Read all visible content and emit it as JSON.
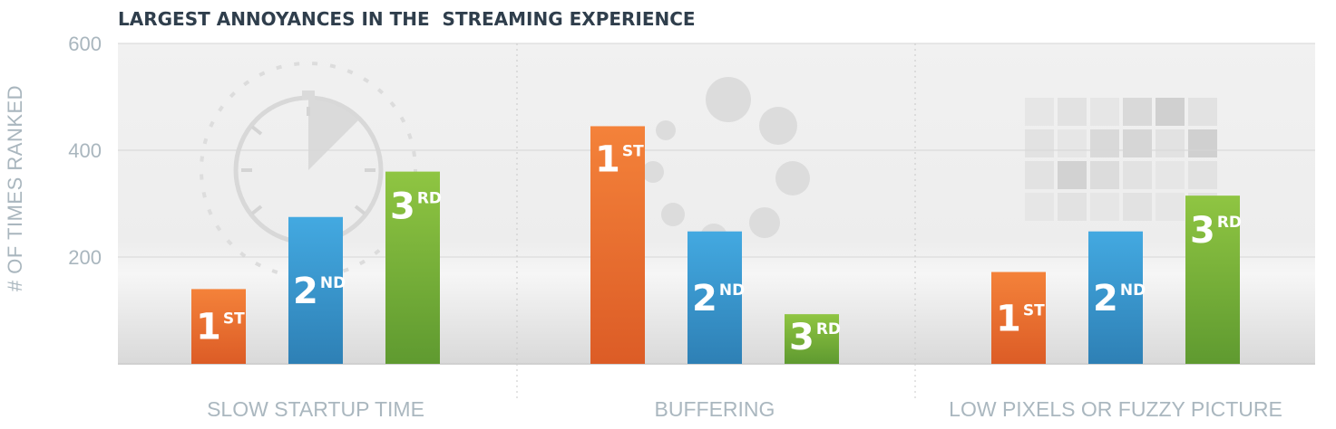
{
  "chart_data": {
    "type": "bar",
    "title": "LARGEST ANNOYANCES IN THE  STREAMING EXPERIENCE",
    "ylabel": "# OF TIMES RANKED",
    "xlabel": "",
    "ylim": [
      0,
      600
    ],
    "yticks": [
      200,
      400,
      600
    ],
    "grid": true,
    "categories": [
      "SLOW STARTUP TIME",
      "BUFFERING",
      "LOW PIXELS OR FUZZY PICTURE"
    ],
    "series": [
      {
        "rank": "1",
        "suffix": "ST",
        "values": [
          140,
          445,
          172
        ],
        "color_top": "#f4823a",
        "color_bottom": "#dc5c26"
      },
      {
        "rank": "2",
        "suffix": "ND",
        "values": [
          275,
          248,
          248
        ],
        "color_top": "#43a9e1",
        "color_bottom": "#2e80b5"
      },
      {
        "rank": "3",
        "suffix": "RD",
        "values": [
          360,
          93,
          315
        ],
        "color_top": "#8fc542",
        "color_bottom": "#5f9a30"
      }
    ],
    "background_icons": [
      "stopwatch-icon",
      "loading-spinner-icon",
      "pixel-grid-icon"
    ]
  }
}
